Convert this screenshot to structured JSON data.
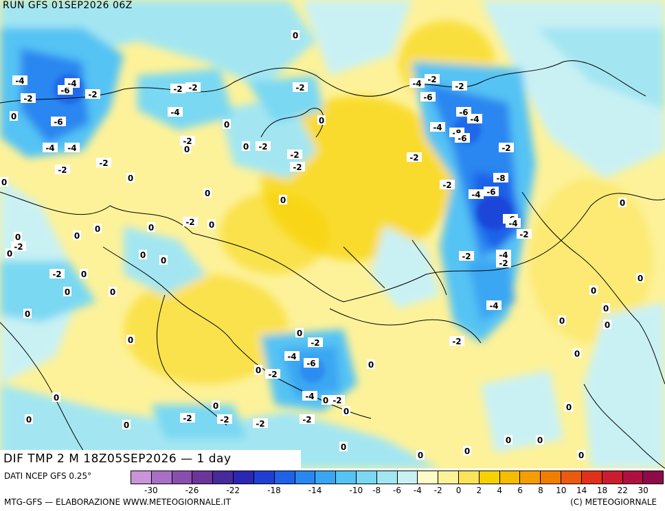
{
  "header": {
    "run_title": "RUN GFS 01SEP2026 06Z",
    "field_title": "DIF TMP 2 M 18Z05SEP2026 — 1 day"
  },
  "footer": {
    "data_source": "DATI NCEP GFS 0.25°",
    "credit_left": "MTG-GFS — ELABORAZIONE WWW.METEOGIORNALE.IT",
    "credit_right": "(C) METEOGIORNALE"
  },
  "legend": {
    "colors": [
      "#c994d8",
      "#a86fc4",
      "#8a4fae",
      "#6b3599",
      "#472a9c",
      "#2c26b4",
      "#1f3fd4",
      "#1f62e8",
      "#2a86f0",
      "#3aa6f2",
      "#55c3f4",
      "#7ad8f2",
      "#a3e6f2",
      "#c9f1f4",
      "#fdfbc8",
      "#fdf29a",
      "#fbe45a",
      "#f7d200",
      "#f7bb00",
      "#f59e00",
      "#f27e00",
      "#ec5a0e",
      "#e0321a",
      "#cc1c30",
      "#b01040",
      "#8f0a48"
    ],
    "ticks": [
      "-30",
      "-26",
      "-22",
      "-18",
      "-14",
      "-10",
      "-8",
      "-6",
      "-4",
      "-2",
      "0",
      "2",
      "4",
      "6",
      "8",
      "10",
      "14",
      "18",
      "22",
      "30"
    ]
  },
  "contour_labels": [
    "0",
    "-2",
    "-4",
    "-6",
    "-8",
    "-2",
    "-4",
    "-6",
    "0"
  ]
}
